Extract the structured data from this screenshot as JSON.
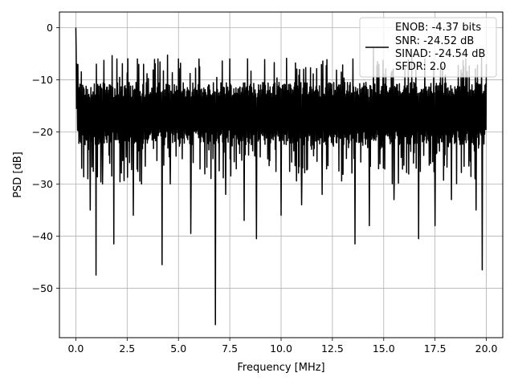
{
  "chart_data": {
    "type": "line",
    "title": "",
    "xlabel": "Frequency [MHz]",
    "ylabel": "PSD [dB]",
    "xlim": [
      -0.8,
      20.8
    ],
    "ylim": [
      -59.5,
      3
    ],
    "xticks": [
      "0.0",
      "2.5",
      "5.0",
      "7.5",
      "10.0",
      "12.5",
      "15.0",
      "17.5",
      "20.0"
    ],
    "yticks": [
      "0",
      "−10",
      "−20",
      "−30",
      "−40",
      "−50"
    ],
    "grid": true,
    "legend_position": "top-right",
    "legend": [
      "ENOB: -4.37 bits",
      "SNR: -24.52 dB",
      "SINAD: -24.54 dB",
      "SFDR: 2.0"
    ],
    "line_color": "#000000",
    "series": [
      {
        "x_range": [
          0,
          20
        ],
        "band_upper": -12,
        "band_lower": -21,
        "peaks": [
          [
            0.0,
            0.0
          ],
          [
            0.02,
            -5
          ],
          [
            0.05,
            -10
          ],
          [
            1.0,
            -7
          ],
          [
            2.0,
            -6
          ],
          [
            3.0,
            -6
          ],
          [
            4.0,
            -6
          ],
          [
            5.0,
            -6
          ],
          [
            6.0,
            -6
          ],
          [
            7.5,
            -6
          ],
          [
            10.0,
            -6
          ],
          [
            12.0,
            -6
          ],
          [
            13.5,
            -6
          ],
          [
            14.5,
            -4
          ],
          [
            15.5,
            -6
          ],
          [
            17.0,
            -6
          ],
          [
            19.0,
            -6
          ],
          [
            20.0,
            -7
          ]
        ],
        "dips": [
          [
            0.28,
            -27
          ],
          [
            0.7,
            -35
          ],
          [
            0.98,
            -47.5
          ],
          [
            1.3,
            -30
          ],
          [
            1.85,
            -41.5
          ],
          [
            2.8,
            -36
          ],
          [
            3.2,
            -30
          ],
          [
            4.2,
            -45.5
          ],
          [
            4.6,
            -30
          ],
          [
            5.6,
            -39.5
          ],
          [
            6.8,
            -57
          ],
          [
            7.3,
            -32
          ],
          [
            8.2,
            -37
          ],
          [
            8.8,
            -40.5
          ],
          [
            10.0,
            -36
          ],
          [
            11.0,
            -34
          ],
          [
            12.0,
            -32
          ],
          [
            13.6,
            -41.5
          ],
          [
            14.3,
            -38
          ],
          [
            15.5,
            -33
          ],
          [
            16.7,
            -40.5
          ],
          [
            17.5,
            -38
          ],
          [
            18.3,
            -33
          ],
          [
            19.5,
            -35
          ],
          [
            19.8,
            -46.5
          ]
        ]
      }
    ]
  }
}
